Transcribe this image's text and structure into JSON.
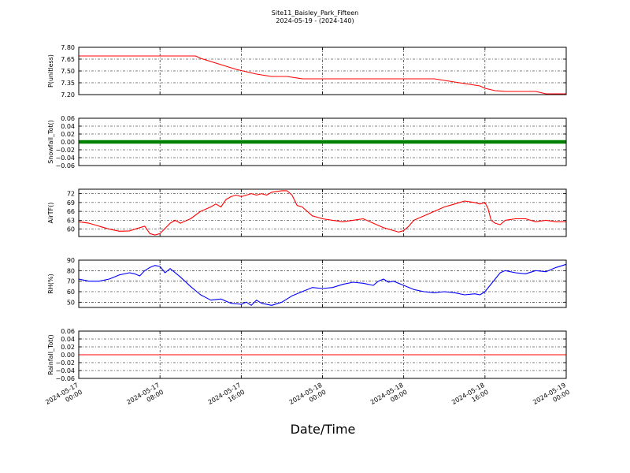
{
  "figure": {
    "title_line1": "Site11_Baisley_Park_Fifteen",
    "title_line2": "2024-05-19 - (2024-140)",
    "xlabel": "Date/Time"
  },
  "chart_data": {
    "type": "line",
    "x_range": [
      "2024-05-17 00:00",
      "2024-05-19 00:00"
    ],
    "x_ticks": [
      {
        "line1": "2024-05-17",
        "line2": "00:00",
        "hour": 0
      },
      {
        "line1": "2024-05-17",
        "line2": "08:00",
        "hour": 8
      },
      {
        "line1": "2024-05-17",
        "line2": "16:00",
        "hour": 16
      },
      {
        "line1": "2024-05-18",
        "line2": "00:00",
        "hour": 24
      },
      {
        "line1": "2024-05-18",
        "line2": "08:00",
        "hour": 32
      },
      {
        "line1": "2024-05-18",
        "line2": "16:00",
        "hour": 40
      },
      {
        "line1": "2024-05-19",
        "line2": "00:00",
        "hour": 48
      }
    ],
    "grid": true,
    "panels": [
      {
        "ylabel": "P(unitless)",
        "ylim": [
          7.2,
          7.8
        ],
        "yticks": [
          "7.80",
          "7.65",
          "7.50",
          "7.35",
          "7.20"
        ],
        "ytick_values": [
          7.8,
          7.65,
          7.5,
          7.35,
          7.2
        ],
        "color": "#ff0000",
        "style": "line",
        "series": {
          "hours": [
            0,
            4,
            8,
            11.5,
            12.0,
            12.5,
            13.0,
            13.5,
            14.0,
            14.5,
            15.0,
            15.5,
            16.5,
            17.5,
            19.0,
            20.5,
            22.0,
            35.0,
            36.5,
            38.0,
            39.5,
            40.0,
            41.0,
            42.0,
            45.0,
            46.0,
            48.0
          ],
          "values": [
            7.69,
            7.69,
            7.69,
            7.69,
            7.66,
            7.64,
            7.62,
            7.6,
            7.58,
            7.56,
            7.54,
            7.52,
            7.49,
            7.46,
            7.43,
            7.43,
            7.4,
            7.4,
            7.37,
            7.34,
            7.31,
            7.28,
            7.25,
            7.24,
            7.24,
            7.21,
            7.21
          ]
        }
      },
      {
        "ylabel": "Snowfall_Tot()",
        "ylim": [
          -0.06,
          0.06
        ],
        "yticks": [
          "0.06",
          "0.04",
          "0.02",
          "0.00",
          "−0.02",
          "−0.04",
          "−0.06"
        ],
        "ytick_values": [
          0.06,
          0.04,
          0.02,
          0.0,
          -0.02,
          -0.04,
          -0.06
        ],
        "color": "#008000",
        "style": "markers",
        "series": {
          "hours": [
            0,
            48
          ],
          "values": [
            0.0,
            0.0
          ]
        }
      },
      {
        "ylabel": "AirTF()",
        "ylim": [
          57.5,
          73.5
        ],
        "yticks": [
          "72",
          "69",
          "66",
          "63",
          "60"
        ],
        "ytick_values": [
          72,
          69,
          66,
          63,
          60
        ],
        "color": "#ff0000",
        "style": "line",
        "series": {
          "hours": [
            0,
            1,
            2,
            3,
            4,
            5,
            6,
            6.5,
            7,
            7.5,
            8,
            9,
            9.5,
            10,
            11,
            12,
            13,
            13.5,
            14,
            14.5,
            15,
            15.5,
            16,
            16.5,
            17,
            17.5,
            18,
            18.5,
            19,
            20,
            20.5,
            21,
            21.5,
            22,
            23,
            23.5,
            24,
            25,
            26,
            27,
            28,
            29,
            30,
            31,
            31.5,
            32,
            32.5,
            33,
            34,
            35,
            36,
            37,
            38,
            39,
            39.5,
            40,
            40.3,
            40.6,
            41,
            41.5,
            42,
            43,
            44,
            45,
            46,
            47,
            48
          ],
          "values": [
            62.5,
            62.0,
            61.0,
            60.0,
            59.3,
            59.4,
            60.5,
            61.0,
            58.5,
            58.0,
            58.5,
            62.0,
            63.0,
            62.0,
            63.5,
            66.0,
            67.5,
            68.5,
            67.5,
            70.0,
            71.0,
            71.5,
            71.0,
            71.5,
            72.0,
            71.5,
            72.0,
            71.5,
            72.5,
            73.0,
            73.0,
            71.5,
            68.0,
            67.5,
            64.5,
            64.0,
            63.5,
            63.0,
            62.5,
            63.0,
            63.5,
            62.0,
            60.5,
            59.5,
            59.0,
            59.5,
            61.0,
            63.0,
            64.5,
            66.0,
            67.5,
            68.5,
            69.5,
            69.0,
            68.5,
            69.0,
            67.0,
            63.0,
            62.0,
            61.5,
            63.0,
            63.5,
            63.5,
            62.5,
            63.0,
            62.5,
            62.5
          ]
        }
      },
      {
        "ylabel": "RH(%)",
        "ylim": [
          45,
          90
        ],
        "yticks": [
          "90",
          "80",
          "70",
          "60",
          "50"
        ],
        "ytick_values": [
          90,
          80,
          70,
          60,
          50
        ],
        "color": "#0000ff",
        "style": "line",
        "series": {
          "hours": [
            0,
            1,
            2,
            3,
            4,
            5,
            5.5,
            6,
            6.5,
            7,
            7.5,
            8,
            8.5,
            9,
            10,
            11,
            12,
            13,
            14,
            15,
            16,
            16.5,
            17,
            17.5,
            18,
            19,
            20,
            21,
            22,
            23,
            24,
            25,
            26,
            27,
            28,
            29,
            29.5,
            30,
            30.5,
            31,
            32,
            33,
            34,
            35,
            36,
            37,
            38,
            39,
            39.5,
            40,
            40.5,
            41,
            41.5,
            42,
            43,
            44,
            45,
            46,
            47,
            48
          ],
          "values": [
            72,
            70,
            70,
            72,
            76,
            78,
            77,
            75,
            80,
            83,
            85,
            84,
            78,
            82,
            74,
            65,
            57,
            52,
            53,
            49,
            48,
            50,
            47,
            52,
            49,
            47,
            50,
            56,
            60,
            64,
            63,
            64,
            67,
            69,
            68,
            66,
            70,
            72,
            69,
            70,
            66,
            62,
            60,
            59,
            60,
            59,
            57,
            58,
            57,
            60,
            66,
            72,
            78,
            80,
            78,
            77,
            80,
            79,
            83,
            86
          ]
        }
      },
      {
        "ylabel": "Rainfall_Tot()",
        "ylim": [
          -0.06,
          0.06
        ],
        "yticks": [
          "0.06",
          "0.04",
          "0.02",
          "0.00",
          "−0.02",
          "−0.04",
          "−0.06"
        ],
        "ytick_values": [
          0.06,
          0.04,
          0.02,
          0.0,
          -0.02,
          -0.04,
          -0.06
        ],
        "color": "#ff0000",
        "style": "line",
        "series": {
          "hours": [
            0,
            48
          ],
          "values": [
            0.0,
            0.0
          ]
        }
      }
    ]
  }
}
